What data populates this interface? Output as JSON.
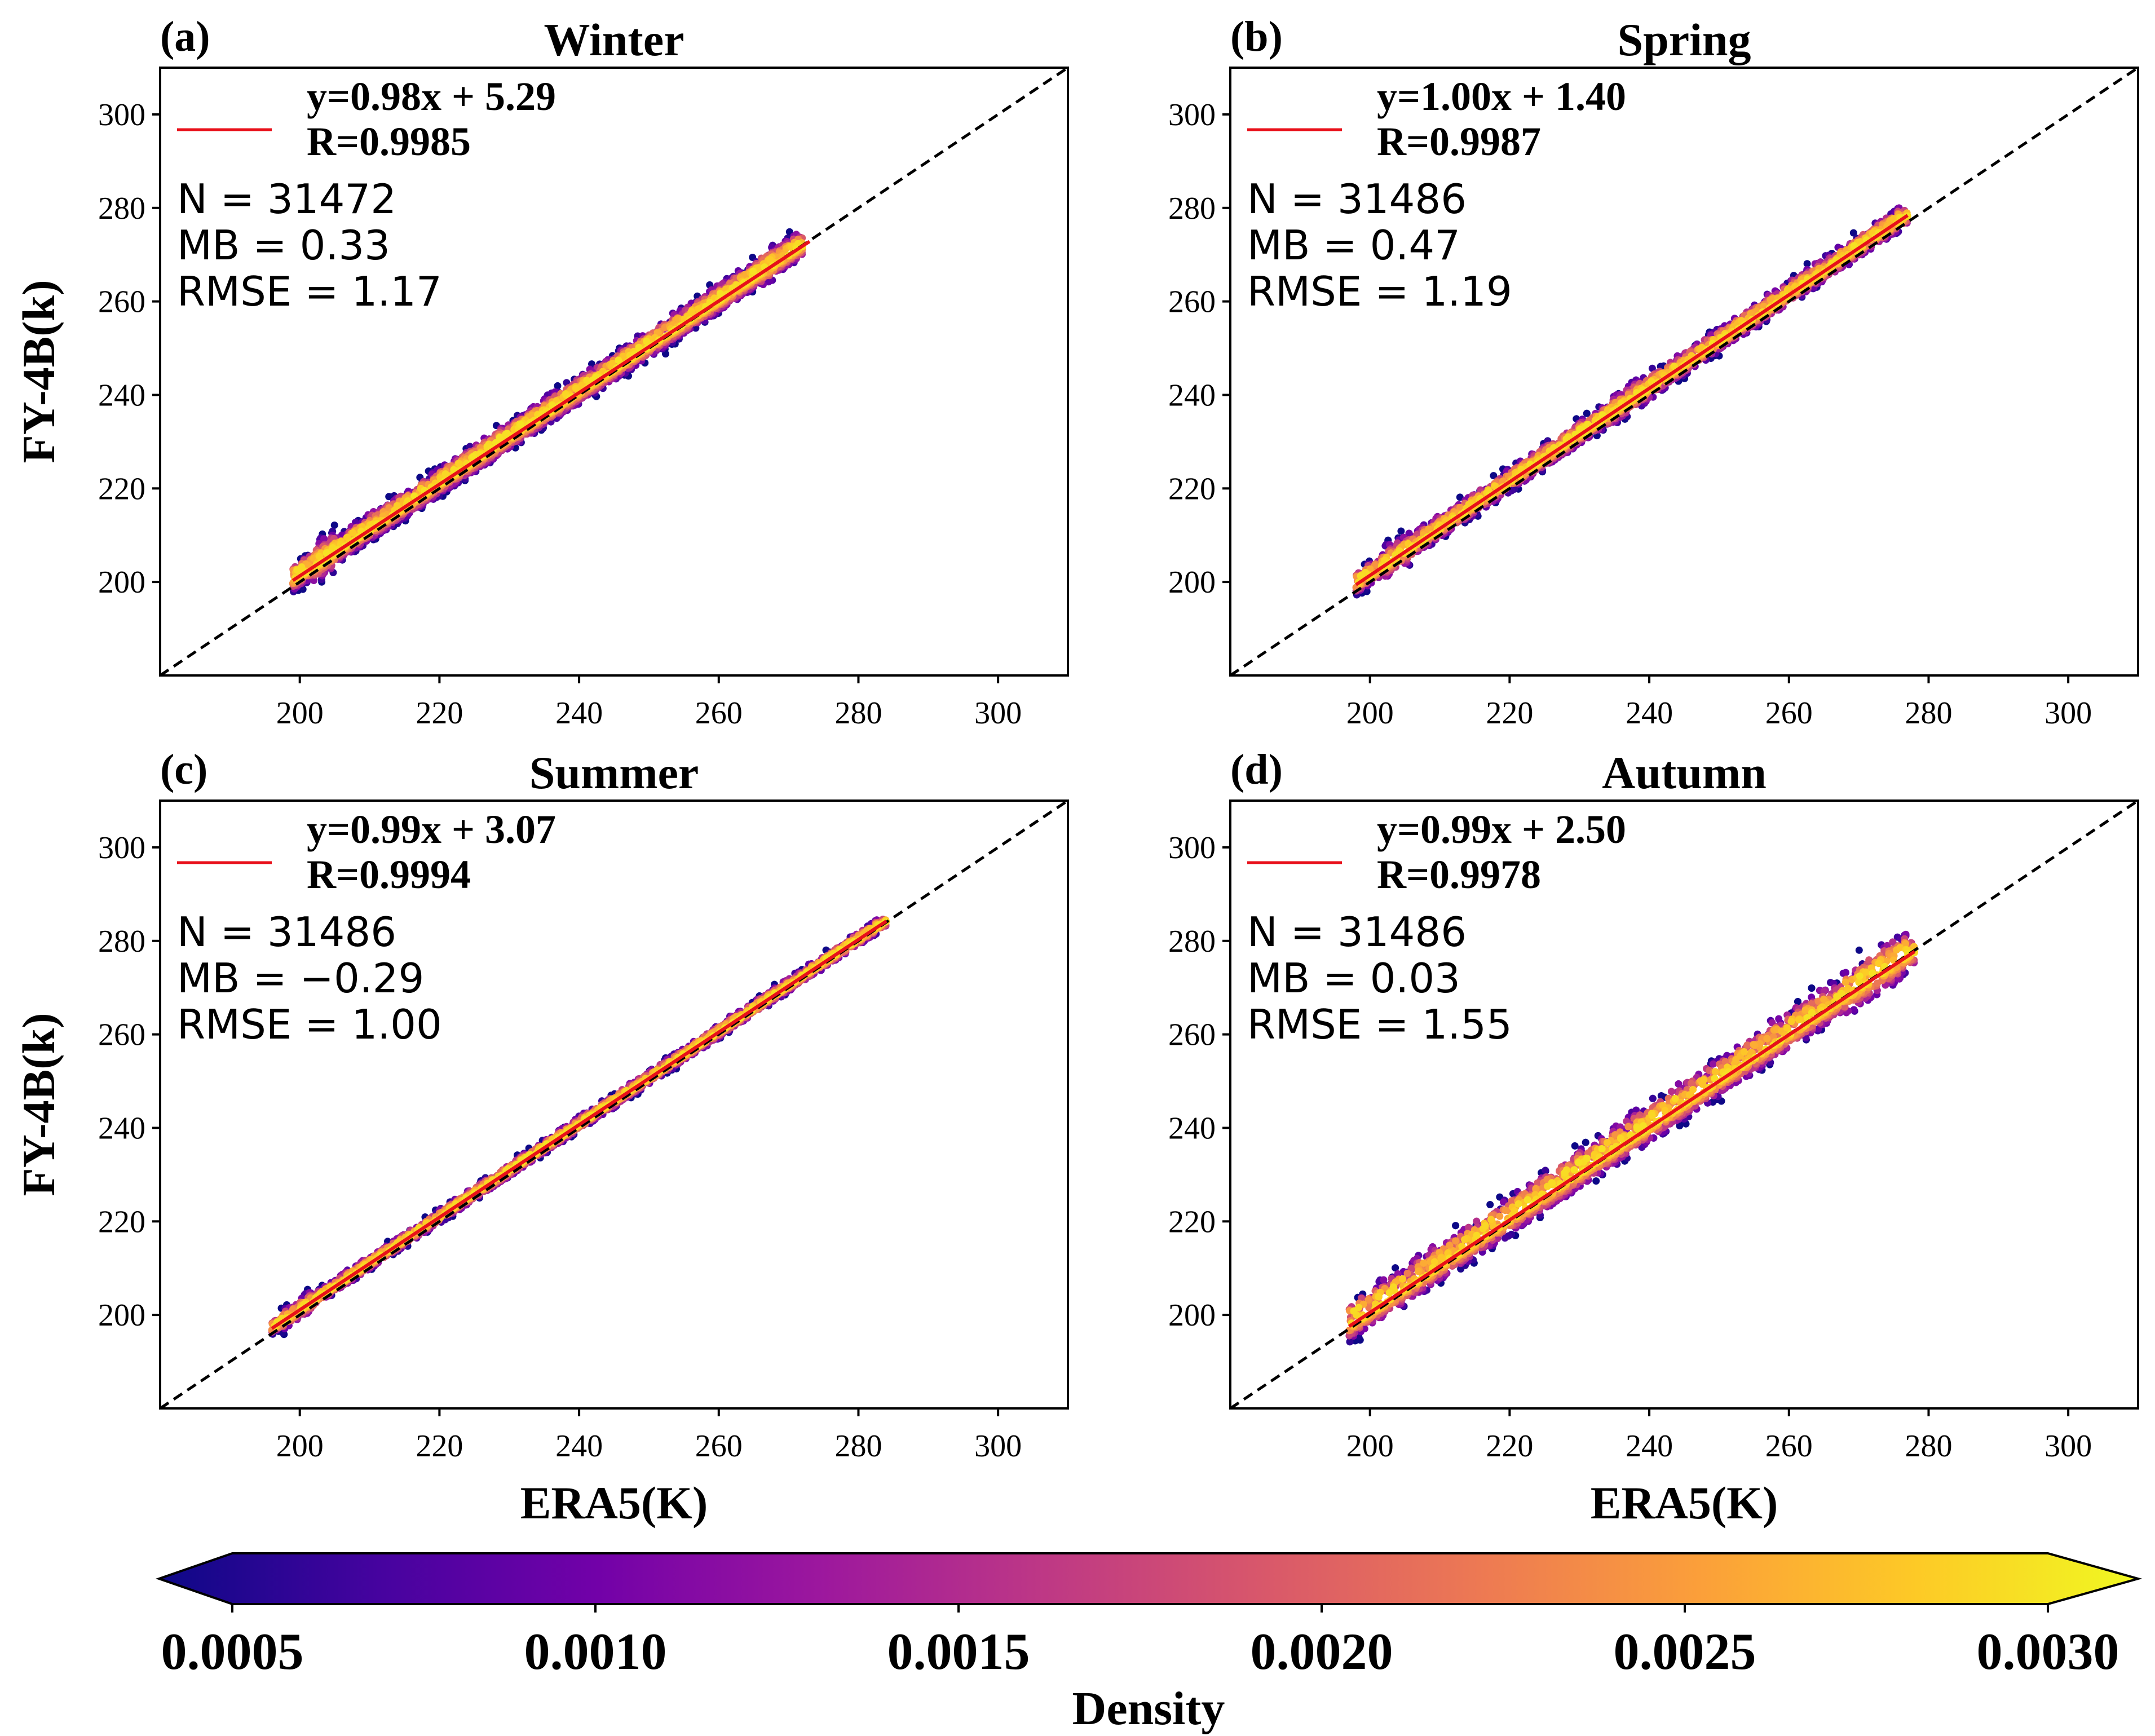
{
  "chart_data": [
    {
      "type": "scatter",
      "panel_label": "(a)",
      "title": "Winter",
      "xlabel": "",
      "ylabel": "FY-4B(k)",
      "xlim": [
        180,
        310
      ],
      "ylim": [
        180,
        310
      ],
      "xticks": [
        200,
        220,
        240,
        260,
        280,
        300
      ],
      "yticks": [
        200,
        220,
        240,
        260,
        280,
        300
      ],
      "fit_line": {
        "slope": 0.98,
        "intercept": 5.29,
        "x_range": [
          199,
          273
        ],
        "color": "#e8101a"
      },
      "legend_equation": "y=0.98x + 5.29",
      "legend_r": "R=0.9985",
      "stats": {
        "n": "N = 31472",
        "mb": "MB = 0.33",
        "rmse": "RMSE = 1.17"
      },
      "cloud": {
        "x_range": [
          199,
          272
        ],
        "spread": 2.2,
        "high_side_offset": 1.6,
        "clusters": [
          [
            202,
            205,
            3.5
          ],
          [
            266,
            268,
            3.0
          ]
        ]
      }
    },
    {
      "type": "scatter",
      "panel_label": "(b)",
      "title": "Spring",
      "xlabel": "",
      "ylabel": "",
      "xlim": [
        180,
        310
      ],
      "ylim": [
        180,
        310
      ],
      "xticks": [
        200,
        220,
        240,
        260,
        280,
        300
      ],
      "yticks": [
        200,
        220,
        240,
        260,
        280,
        300
      ],
      "fit_line": {
        "slope": 1.0,
        "intercept": 1.4,
        "x_range": [
          198,
          277
        ],
        "color": "#e8101a"
      },
      "legend_equation": "y=1.00x + 1.40",
      "legend_r": "R=0.9987",
      "stats": {
        "n": "N = 31486",
        "mb": "MB = 0.47",
        "rmse": "RMSE = 1.19"
      },
      "cloud": {
        "x_range": [
          198,
          277
        ],
        "spread": 2.0,
        "high_side_offset": 1.2,
        "clusters": [
          [
            202,
            206,
            3.0
          ],
          [
            234,
            241,
            2.5
          ]
        ]
      }
    },
    {
      "type": "scatter",
      "panel_label": "(c)",
      "title": "Summer",
      "xlabel": "ERA5(K)",
      "ylabel": "FY-4B(k)",
      "xlim": [
        180,
        310
      ],
      "ylim": [
        180,
        310
      ],
      "xticks": [
        200,
        220,
        240,
        260,
        280,
        300
      ],
      "yticks": [
        200,
        220,
        240,
        260,
        280,
        300
      ],
      "fit_line": {
        "slope": 0.99,
        "intercept": 3.07,
        "x_range": [
          196,
          284
        ],
        "color": "#e8101a"
      },
      "legend_equation": "y=0.99x + 3.07",
      "legend_r": "R=0.9994",
      "stats": {
        "n": "N = 31486",
        "mb": "MB = −0.29",
        "rmse": "RMSE = 1.00"
      },
      "cloud": {
        "x_range": [
          196,
          284
        ],
        "spread": 1.2,
        "high_side_offset": 0.6,
        "clusters": [
          [
            197,
            202,
            2.0
          ]
        ]
      }
    },
    {
      "type": "scatter",
      "panel_label": "(d)",
      "title": "Autumn",
      "xlabel": "ERA5(K)",
      "ylabel": "",
      "xlim": [
        180,
        310
      ],
      "ylim": [
        180,
        310
      ],
      "xticks": [
        200,
        220,
        240,
        260,
        280,
        300
      ],
      "yticks": [
        200,
        220,
        240,
        260,
        280,
        300
      ],
      "fit_line": {
        "slope": 0.99,
        "intercept": 2.5,
        "x_range": [
          197,
          278
        ],
        "color": "#e8101a"
      },
      "legend_equation": "y=0.99x + 2.50",
      "legend_r": "R=0.9978",
      "stats": {
        "n": "N = 31486",
        "mb": "MB = 0.03",
        "rmse": "RMSE = 1.55"
      },
      "cloud": {
        "x_range": [
          197,
          278
        ],
        "spread": 3.0,
        "high_side_offset": 2.6,
        "clusters": [
          [
            268,
            276,
            4.0
          ]
        ]
      }
    }
  ],
  "colorbar": {
    "label": "Density",
    "min": 0.0005,
    "max": 0.003,
    "ticks": [
      "0.0005",
      "0.0010",
      "0.0015",
      "0.0020",
      "0.0025",
      "0.0030"
    ],
    "colormap": [
      "#0d0887",
      "#46039f",
      "#7201a8",
      "#9c179e",
      "#bd3786",
      "#d8576b",
      "#ed7953",
      "#fb9f3a",
      "#fdca26",
      "#f0f921"
    ],
    "extend": "both"
  },
  "colors": {
    "identity_line": "#000000",
    "fit_line": "#e8101a"
  }
}
